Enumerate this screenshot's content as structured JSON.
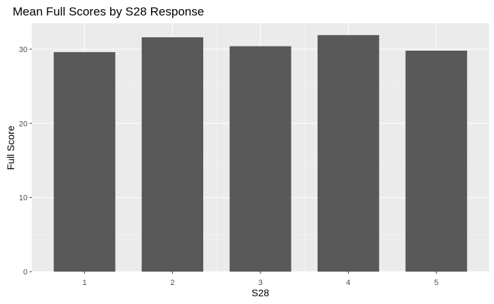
{
  "chart_data": {
    "type": "bar",
    "title": "Mean Full Scores by S28 Response",
    "xlabel": "S28",
    "ylabel": "Full Score",
    "categories": [
      "1",
      "2",
      "3",
      "4",
      "5"
    ],
    "values": [
      29.6,
      31.6,
      30.4,
      31.9,
      29.8
    ],
    "ylim": [
      0,
      33.5
    ],
    "yticks": [
      0,
      10,
      20,
      30
    ],
    "grid": true,
    "colors": {
      "panel_background": "#ebebeb",
      "grid_major": "#ffffff",
      "grid_minor": "#f5f5f5",
      "bar_fill": "#595959"
    }
  }
}
